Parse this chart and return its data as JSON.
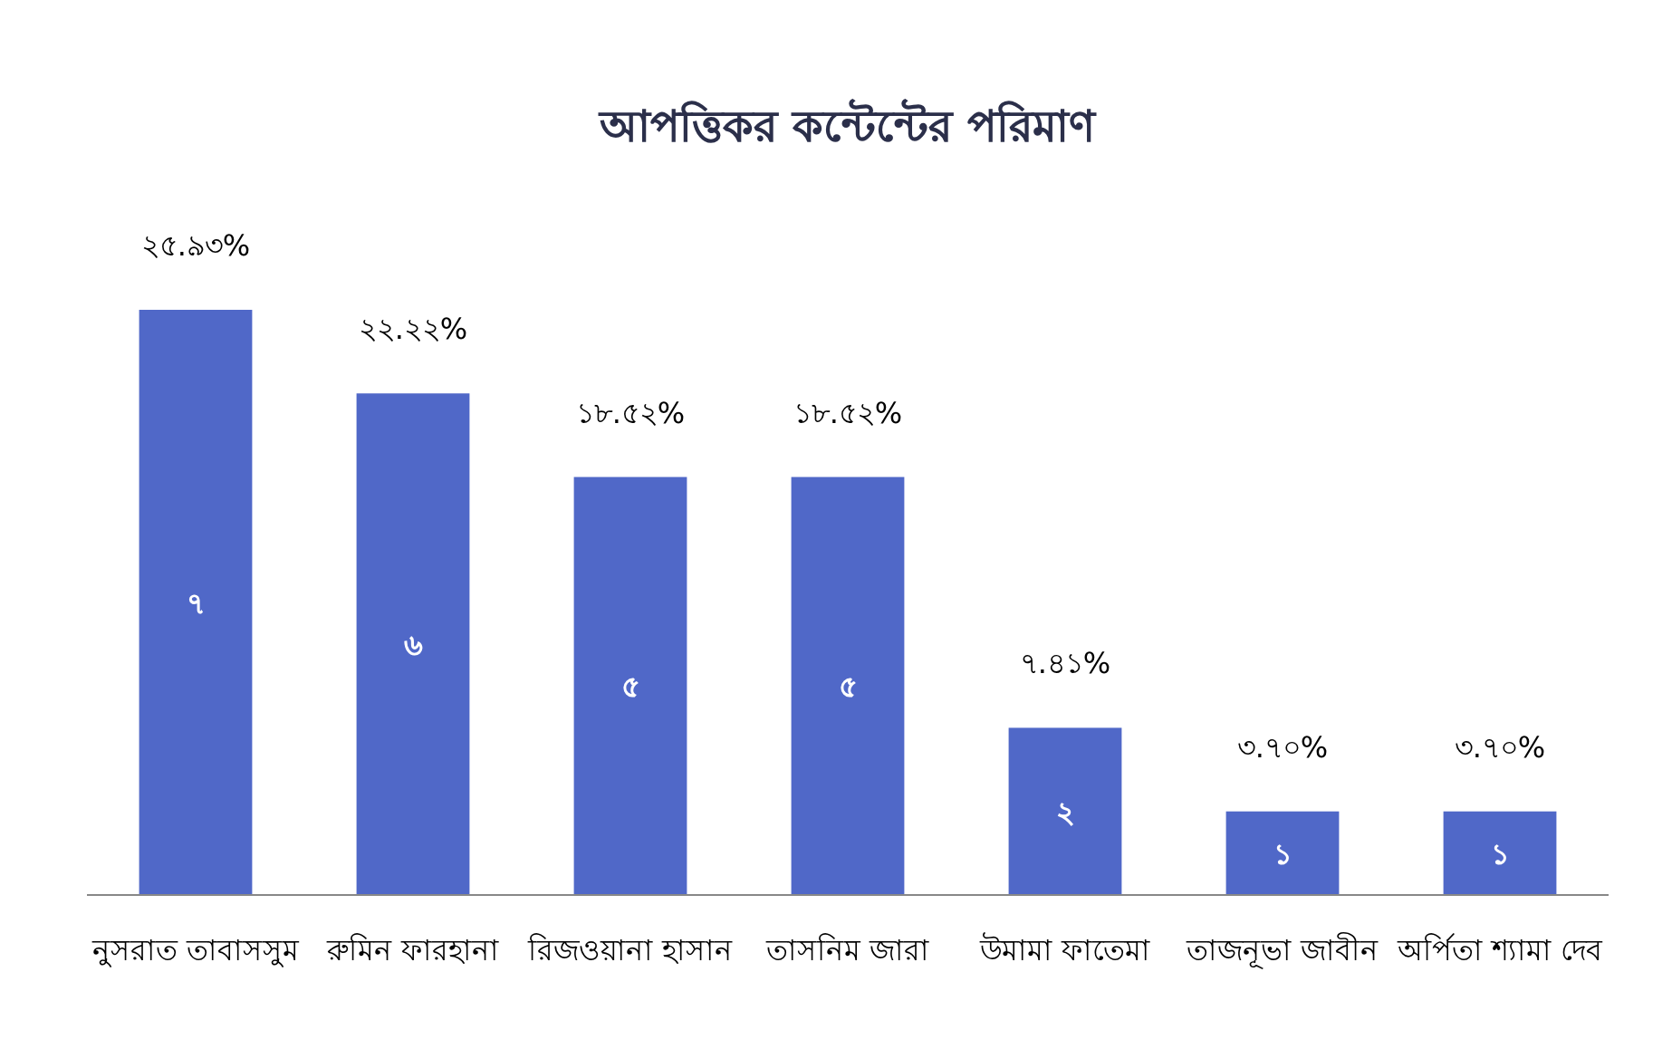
{
  "chart_data": {
    "type": "bar",
    "title": "আপত্তিকর কন্টেন্টের পরিমাণ",
    "categories": [
      "নুসরাত তাবাসসুম",
      "রুমিন ফারহানা",
      "রিজওয়ানা হাসান",
      "তাসনিম জারা",
      "উমামা ফাতেমা",
      "তাজনূভা জাবীন",
      "অর্পিতা শ্যামা দেব"
    ],
    "values": [
      7,
      6,
      5,
      5,
      2,
      1,
      1
    ],
    "value_labels": [
      "৭",
      "৬",
      "৫",
      "৫",
      "২",
      "১",
      "১"
    ],
    "color": "#5068c8",
    "annotations": [
      {
        "text": "২৫.৯৩%",
        "x": "নুসরাত তাবাসসুম",
        "y": 7
      },
      {
        "text": "২২.২২%",
        "x": "রুমিন ফারহানা",
        "y": 6
      },
      {
        "text": "১৮.৫২%",
        "x": "রিজওয়ানা হাসান",
        "y": 5
      },
      {
        "text": "১৮.৫২%",
        "x": "তাসনিম জারা",
        "y": 5
      },
      {
        "text": "৭.৪১%",
        "x": "উমামা ফাতেমা",
        "y": 2
      },
      {
        "text": "৩.৭০%",
        "x": "তাজনূভা জাবীন",
        "y": 1
      },
      {
        "text": "৩.৭০%",
        "x": "অর্পিতা শ্যামা দেব",
        "y": 1
      }
    ],
    "grid": false
  }
}
